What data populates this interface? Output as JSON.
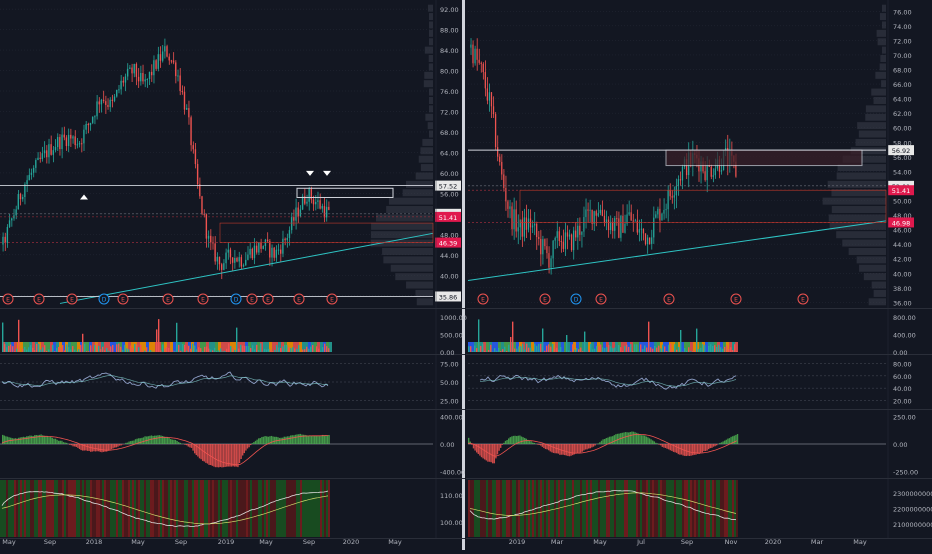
{
  "colors": {
    "background": "#131722",
    "grid": "#262b38",
    "axis_text": "#b2b5be",
    "up": "#26a69a",
    "down": "#ef5350",
    "trendline": "#2ec4c4",
    "price_label_bg": "#e8e8e8",
    "highlight_red": "#e0194d",
    "earnings_marker": "#ef5350",
    "dividend_marker": "#2196f3"
  },
  "chart_data": [
    {
      "type": "candlestick",
      "panel": "left-price",
      "title": "",
      "x_ticks": [
        "May",
        "Sep",
        "2018",
        "May",
        "Sep",
        "2019",
        "May",
        "Sep",
        "2020",
        "May"
      ],
      "y_ticks": [
        "92.00",
        "88.00",
        "84.00",
        "80.00",
        "76.00",
        "72.00",
        "68.00",
        "64.00",
        "60.00",
        "56.00",
        "52.00",
        "48.00",
        "44.00",
        "40.00",
        "36.00"
      ],
      "ylim": [
        34,
        93
      ],
      "price_labels": [
        {
          "value": "57.52",
          "style": "light"
        },
        {
          "value": "52.01",
          "style": "light"
        },
        {
          "value": "51.41",
          "style": "red"
        },
        {
          "value": "46.39",
          "style": "red"
        },
        {
          "value": "35.86",
          "style": "light"
        }
      ],
      "horizontal_lines": [
        57.52,
        35.86
      ],
      "event_markers": [
        "E",
        "E",
        "E",
        "D",
        "E",
        "E",
        "E",
        "D",
        "E",
        "E",
        "E",
        "E"
      ],
      "close_path": [
        46,
        52,
        58,
        61,
        64,
        66,
        67,
        66,
        70,
        75,
        73,
        78,
        80,
        77,
        81,
        84,
        80,
        71,
        56,
        46,
        42,
        44,
        43,
        45,
        46,
        44,
        47,
        52,
        56,
        54,
        52
      ]
    },
    {
      "type": "bar",
      "panel": "left-volume",
      "y_ticks": [
        "1000.00",
        "500.00",
        "0.00"
      ]
    },
    {
      "type": "line",
      "panel": "left-oscillator",
      "y_ticks": [
        "75.00",
        "50.00",
        "25.00"
      ]
    },
    {
      "type": "bar",
      "panel": "left-histogram",
      "y_ticks": [
        "400.00",
        "0.00",
        "-400.00"
      ]
    },
    {
      "type": "line",
      "panel": "left-bottom",
      "y_ticks": [
        "110.00",
        "100.00"
      ]
    },
    {
      "type": "candlestick",
      "panel": "right-price",
      "title": "",
      "x_ticks": [
        "2019",
        "Mar",
        "May",
        "Jul",
        "Sep",
        "Nov",
        "2020",
        "Mar",
        "May"
      ],
      "y_ticks": [
        "76.00",
        "74.00",
        "72.00",
        "70.00",
        "68.00",
        "66.00",
        "64.00",
        "62.00",
        "60.00",
        "58.00",
        "56.00",
        "54.00",
        "52.00",
        "50.00",
        "48.00",
        "46.00",
        "44.00",
        "42.00",
        "40.00",
        "38.00",
        "36.00"
      ],
      "ylim": [
        35.5,
        77
      ],
      "price_labels": [
        {
          "value": "56.92",
          "style": "light"
        },
        {
          "value": "52.01",
          "style": "light"
        },
        {
          "value": "51.41",
          "style": "red"
        },
        {
          "value": "46.98",
          "style": "red"
        }
      ],
      "horizontal_lines": [
        56.92
      ],
      "event_markers": [
        "E",
        "E",
        "D",
        "E",
        "E",
        "E",
        "E"
      ],
      "close_path": [
        71,
        68,
        63,
        54,
        48,
        46,
        47,
        44,
        42,
        45,
        44,
        46,
        48,
        49,
        47,
        46,
        48,
        46,
        45,
        48,
        50,
        53,
        55,
        56,
        54,
        55,
        56,
        54
      ]
    },
    {
      "type": "bar",
      "panel": "right-volume",
      "y_ticks": [
        "800.00",
        "400.00",
        "0.00"
      ]
    },
    {
      "type": "line",
      "panel": "right-oscillator",
      "y_ticks": [
        "80.00",
        "60.00",
        "40.00",
        "20.00"
      ]
    },
    {
      "type": "bar",
      "panel": "right-histogram",
      "y_ticks": [
        "250.00",
        "0.00",
        "-250.00"
      ]
    },
    {
      "type": "line",
      "panel": "right-bottom",
      "y_ticks": [
        "2300000000.00",
        "2200000000.00",
        "2100000000.00"
      ]
    }
  ]
}
